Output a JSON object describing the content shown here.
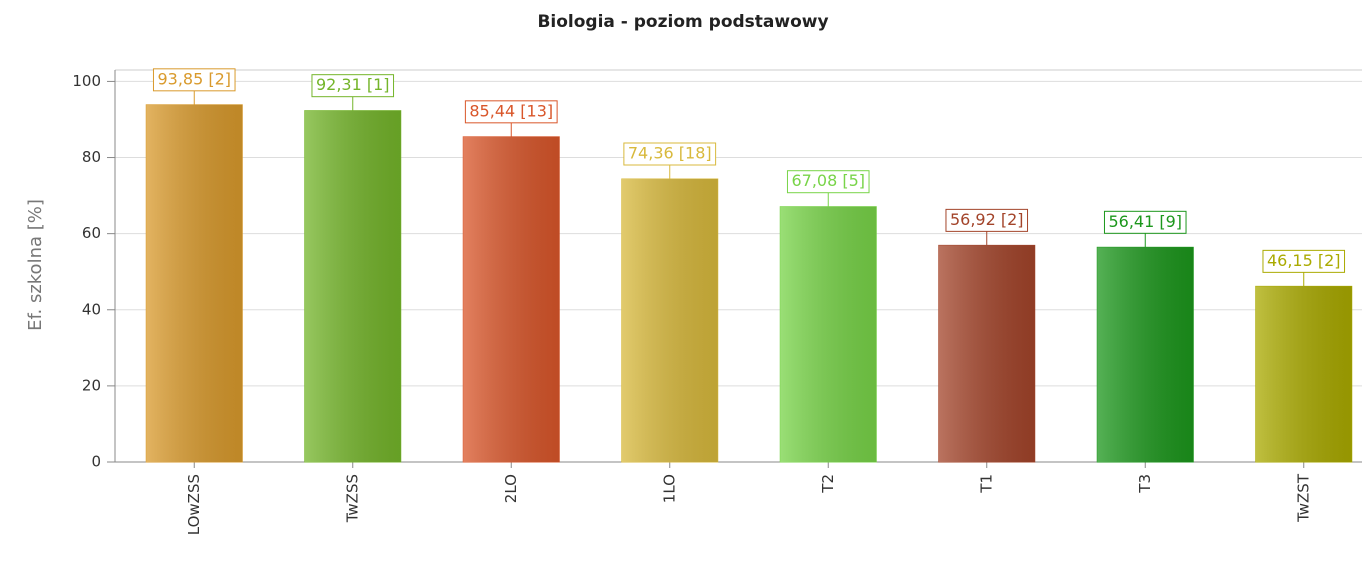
{
  "chart_data": {
    "type": "bar",
    "title": "Biologia - poziom podstawowy",
    "y_label": "Ef. szkolna [%]",
    "categories": [
      "LOwZSS",
      "TwZSS",
      "2LO",
      "1LO",
      "T2",
      "T1",
      "T3",
      "TwZST"
    ],
    "values": [
      93.85,
      92.31,
      85.44,
      74.36,
      67.08,
      56.92,
      56.41,
      46.15
    ],
    "value_labels": [
      "93,85 [2]",
      "92,31 [1]",
      "85,44 [13]",
      "74,36 [18]",
      "67,08 [5]",
      "56,92 [2]",
      "56,41 [9]",
      "46,15 [2]"
    ],
    "colors": [
      "#d99a2c",
      "#74b52a",
      "#d9562a",
      "#d8b93c",
      "#78d448",
      "#a3442a",
      "#1c971c",
      "#aaaa00"
    ],
    "ylim": [
      0,
      103
    ],
    "yticks": [
      0,
      20,
      40,
      60,
      80,
      100
    ],
    "grid": true
  }
}
